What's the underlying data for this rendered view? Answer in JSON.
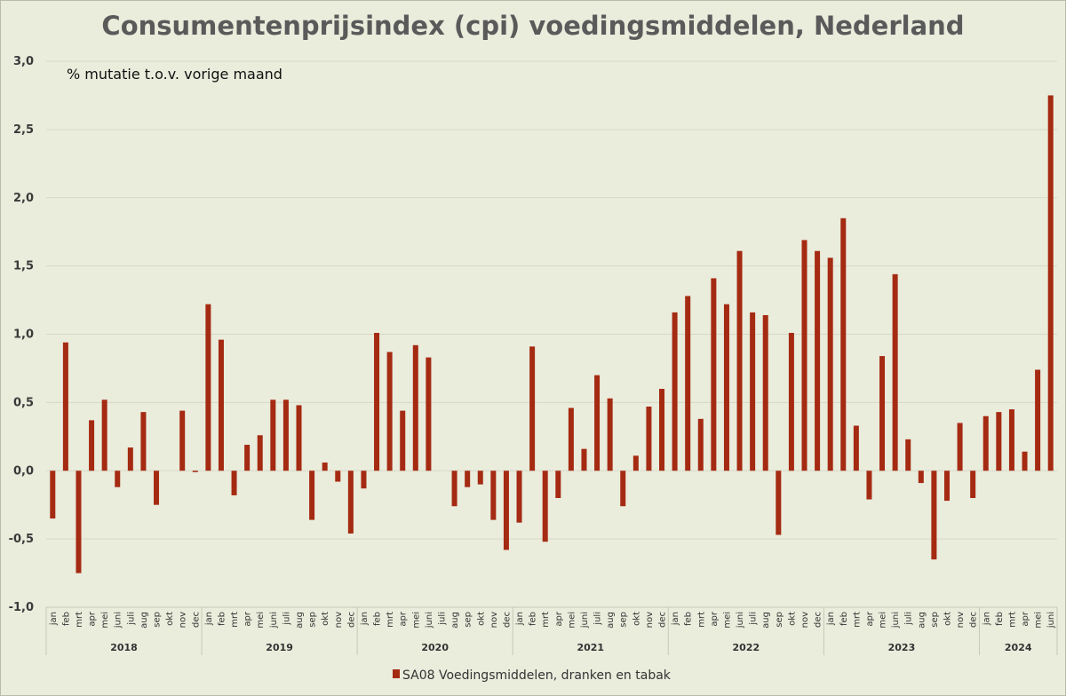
{
  "chart_data": {
    "type": "bar",
    "title": "Consumentenprijsindex (cpi) voedingsmiddelen, Nederland",
    "subtitle": "% mutatie t.o.v. vorige maand",
    "ylim": [
      -1.0,
      3.0
    ],
    "yticks": [
      "-1,0",
      "-0,5",
      "0,0",
      "0,5",
      "1,0",
      "1,5",
      "2,0",
      "2,5",
      "3,0"
    ],
    "grid": true,
    "legend_position": "bottom",
    "months_full": [
      "jan",
      "feb",
      "mrt",
      "apr",
      "mei",
      "juni",
      "juli",
      "aug",
      "sep",
      "okt",
      "nov",
      "dec"
    ],
    "years": [
      {
        "year": "2018",
        "months": 12
      },
      {
        "year": "2019",
        "months": 12
      },
      {
        "year": "2020",
        "months": 12
      },
      {
        "year": "2021",
        "months": 12
      },
      {
        "year": "2022",
        "months": 12
      },
      {
        "year": "2023",
        "months": 12
      },
      {
        "year": "2024",
        "months": 6
      }
    ],
    "series": [
      {
        "name": "SA08 Voedingsmiddelen, dranken en tabak",
        "color": "#a52a12",
        "values": [
          -0.35,
          0.94,
          -0.75,
          0.37,
          0.52,
          -0.12,
          0.17,
          0.43,
          -0.25,
          0.0,
          0.44,
          -0.01,
          1.22,
          0.96,
          -0.18,
          0.19,
          0.26,
          0.52,
          0.52,
          0.48,
          -0.36,
          0.06,
          -0.08,
          -0.46,
          -0.13,
          1.01,
          0.87,
          0.44,
          0.92,
          0.83,
          0.0,
          -0.26,
          -0.12,
          -0.1,
          -0.36,
          -0.58,
          -0.38,
          0.91,
          -0.52,
          -0.2,
          0.46,
          0.16,
          0.7,
          0.53,
          -0.26,
          0.11,
          0.47,
          0.6,
          1.16,
          1.28,
          0.38,
          1.41,
          1.22,
          1.61,
          1.16,
          1.14,
          -0.47,
          1.01,
          1.69,
          1.61,
          1.56,
          1.85,
          0.33,
          -0.21,
          0.84,
          1.44,
          0.23,
          -0.09,
          -0.65,
          -0.22,
          0.35,
          -0.2,
          0.4,
          0.43,
          0.45,
          0.14,
          0.74,
          2.75
        ]
      }
    ]
  }
}
